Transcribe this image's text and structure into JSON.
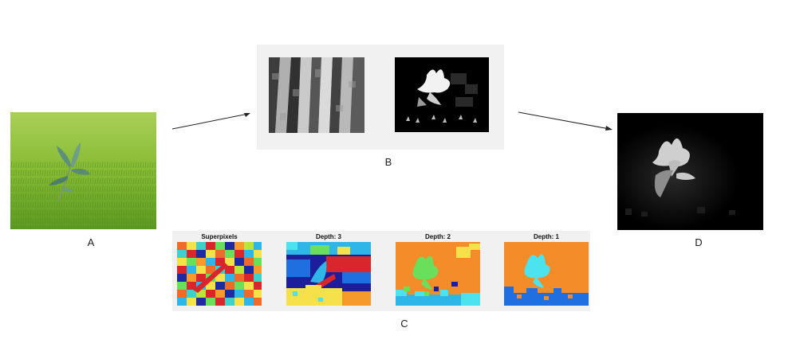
{
  "labels": {
    "a": "A",
    "b": "B",
    "c": "C",
    "d": "D"
  },
  "panel_c": {
    "titles": [
      "Superpixels",
      "Depth: 3",
      "Depth: 2",
      "Depth: 1"
    ]
  },
  "colors": {
    "panel_bg": "#f1f1f1",
    "grass_light": "#8fc43a",
    "grass_dark": "#3f7a1a",
    "leaf": "#5f8a78",
    "depth_orange": "#f58c2a",
    "depth_cyan": "#4de3ee",
    "depth_blue": "#1f6fe0",
    "depth_navy": "#1c1e9c"
  }
}
